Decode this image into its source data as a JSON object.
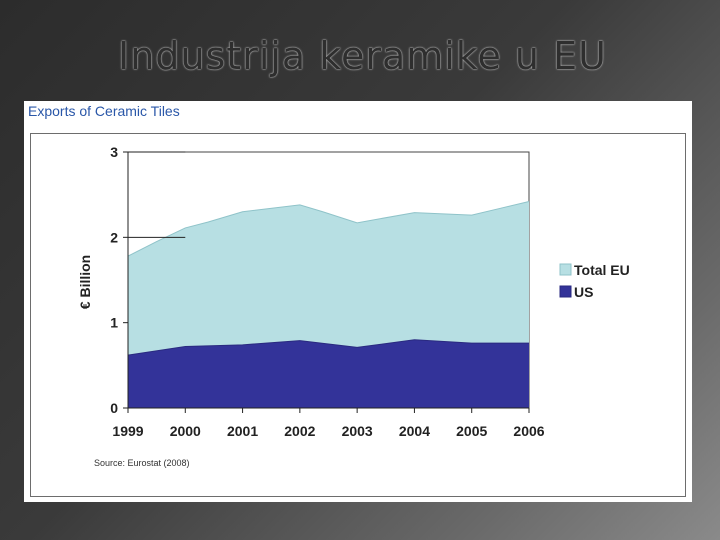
{
  "slide": {
    "title": "Industrija keramike u EU"
  },
  "chart_data": {
    "type": "area",
    "title": "Exports of Ceramic Tiles",
    "xlabel": "",
    "ylabel": "€ Billion",
    "x": [
      "1999",
      "2000",
      "2001",
      "2002",
      "2003",
      "2004",
      "2005",
      "2006"
    ],
    "ylim": [
      0,
      3
    ],
    "yticks": [
      "0",
      "1",
      "2",
      "3"
    ],
    "stacked": false,
    "series": [
      {
        "name": "Total EU",
        "color": "#b7dfe3",
        "x": [
          1999,
          1999.5,
          2000,
          2000.4,
          2001,
          2002,
          2002.4,
          2003,
          2004,
          2005,
          2005.5,
          2006
        ],
        "values": [
          1.78,
          1.95,
          2.11,
          2.18,
          2.3,
          2.38,
          2.3,
          2.17,
          2.29,
          2.26,
          2.34,
          2.42
        ]
      },
      {
        "name": "US",
        "color": "#333399",
        "x": [
          1999,
          2000,
          2001,
          2002,
          2003,
          2004,
          2005,
          2006
        ],
        "values": [
          0.62,
          0.72,
          0.74,
          0.79,
          0.71,
          0.8,
          0.76,
          0.76
        ]
      }
    ],
    "legend_position": "right",
    "source": "Source: Eurostat (2008)"
  }
}
